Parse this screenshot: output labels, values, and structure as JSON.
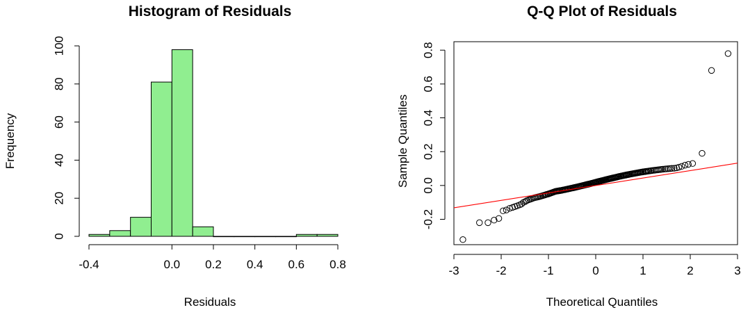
{
  "chart_data": [
    {
      "type": "bar",
      "title": "Histogram of Residuals",
      "xlabel": "Residuals",
      "ylabel": "Frequency",
      "xlim": [
        -0.4,
        0.8
      ],
      "ylim": [
        0,
        100
      ],
      "xticks": [
        -0.4,
        0.0,
        0.2,
        0.4,
        0.6,
        0.8
      ],
      "xtick_labels": [
        "-0.4",
        "0.0",
        "0.2",
        "0.4",
        "0.6",
        "0.8"
      ],
      "yticks": [
        0,
        20,
        40,
        60,
        80,
        100
      ],
      "ytick_labels": [
        "0",
        "20",
        "40",
        "60",
        "80",
        "100"
      ],
      "bin_width": 0.1,
      "bins": [
        {
          "from": -0.4,
          "to": -0.3,
          "count": 1
        },
        {
          "from": -0.3,
          "to": -0.2,
          "count": 3
        },
        {
          "from": -0.2,
          "to": -0.1,
          "count": 10
        },
        {
          "from": -0.1,
          "to": 0.0,
          "count": 81
        },
        {
          "from": 0.0,
          "to": 0.1,
          "count": 98
        },
        {
          "from": 0.1,
          "to": 0.2,
          "count": 5
        },
        {
          "from": 0.2,
          "to": 0.3,
          "count": 0
        },
        {
          "from": 0.3,
          "to": 0.4,
          "count": 0
        },
        {
          "from": 0.4,
          "to": 0.5,
          "count": 0
        },
        {
          "from": 0.5,
          "to": 0.6,
          "count": 0
        },
        {
          "from": 0.6,
          "to": 0.7,
          "count": 1
        },
        {
          "from": 0.7,
          "to": 0.8,
          "count": 1
        }
      ],
      "bar_color": "#90ee90",
      "grid": false
    },
    {
      "type": "scatter",
      "title": "Q-Q Plot of Residuals",
      "xlabel": "Theoretical Quantiles",
      "ylabel": "Sample Quantiles",
      "xlim": [
        -3.0,
        3.0
      ],
      "ylim": [
        -0.35,
        0.85
      ],
      "xticks": [
        -3,
        -2,
        -1,
        0,
        1,
        2,
        3
      ],
      "xtick_labels": [
        "-3",
        "-2",
        "-1",
        "0",
        "1",
        "2",
        "3"
      ],
      "yticks": [
        -0.2,
        0.0,
        0.2,
        0.4,
        0.6,
        0.8
      ],
      "ytick_labels": [
        "-0.2",
        "0.0",
        "0.2",
        "0.4",
        "0.6",
        "0.8"
      ],
      "n_points": 200,
      "points": [
        [
          -2.81,
          -0.32
        ],
        [
          -2.46,
          -0.22
        ],
        [
          -2.28,
          -0.22
        ],
        [
          -2.15,
          -0.205
        ],
        [
          -2.05,
          -0.195
        ],
        [
          -1.96,
          -0.15
        ],
        [
          -1.89,
          -0.145
        ],
        [
          -1.82,
          -0.135
        ],
        [
          -1.76,
          -0.13
        ],
        [
          -1.71,
          -0.125
        ],
        [
          -1.66,
          -0.12
        ],
        [
          -1.61,
          -0.115
        ],
        [
          -1.57,
          -0.11
        ],
        [
          -1.53,
          -0.1
        ],
        [
          -1.49,
          -0.095
        ],
        [
          -1.46,
          -0.09
        ],
        [
          -1.42,
          -0.085
        ],
        [
          -1.39,
          -0.082
        ],
        [
          -1.36,
          -0.079
        ],
        [
          -1.33,
          -0.076
        ],
        [
          -1.3,
          -0.073
        ],
        [
          -1.27,
          -0.071
        ],
        [
          -1.24,
          -0.069
        ],
        [
          -1.21,
          -0.067
        ],
        [
          -1.18,
          -0.065
        ],
        [
          -1.16,
          -0.063
        ],
        [
          -1.13,
          -0.061
        ],
        [
          -1.11,
          -0.059
        ],
        [
          -1.08,
          -0.057
        ],
        [
          -1.06,
          -0.055
        ],
        [
          -1.04,
          -0.053
        ],
        [
          -1.01,
          -0.051
        ],
        [
          -0.99,
          -0.049
        ],
        [
          -0.97,
          -0.047
        ],
        [
          -0.95,
          -0.045
        ],
        [
          -0.93,
          -0.043
        ],
        [
          -0.91,
          -0.041
        ],
        [
          -0.89,
          -0.039
        ],
        [
          -0.87,
          -0.037
        ],
        [
          -0.85,
          -0.035
        ],
        [
          -0.83,
          -0.034
        ],
        [
          -0.81,
          -0.033
        ],
        [
          -0.79,
          -0.032
        ],
        [
          -0.77,
          -0.031
        ],
        [
          -0.75,
          -0.03
        ],
        [
          -0.73,
          -0.029
        ],
        [
          -0.71,
          -0.028
        ],
        [
          -0.7,
          -0.027
        ],
        [
          -0.68,
          -0.026
        ],
        [
          -0.66,
          -0.025
        ],
        [
          -0.64,
          -0.024
        ],
        [
          -0.63,
          -0.023
        ],
        [
          -0.61,
          -0.022
        ],
        [
          -0.59,
          -0.021
        ],
        [
          -0.58,
          -0.02
        ],
        [
          -0.56,
          -0.019
        ],
        [
          -0.54,
          -0.018
        ],
        [
          -0.53,
          -0.017
        ],
        [
          -0.51,
          -0.016
        ],
        [
          -0.49,
          -0.015
        ],
        [
          -0.48,
          -0.014
        ],
        [
          -0.46,
          -0.013
        ],
        [
          -0.45,
          -0.012
        ],
        [
          -0.43,
          -0.011
        ],
        [
          -0.42,
          -0.01
        ],
        [
          -0.4,
          -0.009
        ],
        [
          -0.39,
          -0.008
        ],
        [
          -0.37,
          -0.007
        ],
        [
          -0.36,
          -0.006
        ],
        [
          -0.34,
          -0.005
        ],
        [
          -0.33,
          -0.004
        ],
        [
          -0.31,
          -0.003
        ],
        [
          -0.3,
          -0.002
        ],
        [
          -0.28,
          -0.001
        ],
        [
          -0.27,
          0.0
        ],
        [
          -0.25,
          0.001
        ],
        [
          -0.24,
          0.002
        ],
        [
          -0.22,
          0.003
        ],
        [
          -0.21,
          0.004
        ],
        [
          -0.2,
          0.005
        ],
        [
          -0.18,
          0.006
        ],
        [
          -0.17,
          0.007
        ],
        [
          -0.15,
          0.008
        ],
        [
          -0.14,
          0.009
        ],
        [
          -0.12,
          0.01
        ],
        [
          -0.11,
          0.011
        ],
        [
          -0.1,
          0.012
        ],
        [
          -0.08,
          0.013
        ],
        [
          -0.07,
          0.014
        ],
        [
          -0.05,
          0.015
        ],
        [
          -0.04,
          0.016
        ],
        [
          -0.03,
          0.017
        ],
        [
          -0.01,
          0.018
        ],
        [
          0.0,
          0.019
        ],
        [
          0.01,
          0.02
        ],
        [
          0.03,
          0.021
        ],
        [
          0.04,
          0.022
        ],
        [
          0.05,
          0.023
        ],
        [
          0.07,
          0.024
        ],
        [
          0.08,
          0.025
        ],
        [
          0.1,
          0.026
        ],
        [
          0.11,
          0.027
        ],
        [
          0.12,
          0.028
        ],
        [
          0.14,
          0.029
        ],
        [
          0.15,
          0.03
        ],
        [
          0.17,
          0.031
        ],
        [
          0.18,
          0.032
        ],
        [
          0.2,
          0.033
        ],
        [
          0.21,
          0.034
        ],
        [
          0.22,
          0.035
        ],
        [
          0.24,
          0.036
        ],
        [
          0.25,
          0.037
        ],
        [
          0.27,
          0.038
        ],
        [
          0.28,
          0.039
        ],
        [
          0.3,
          0.04
        ],
        [
          0.31,
          0.041
        ],
        [
          0.33,
          0.042
        ],
        [
          0.34,
          0.043
        ],
        [
          0.36,
          0.044
        ],
        [
          0.37,
          0.045
        ],
        [
          0.39,
          0.046
        ],
        [
          0.4,
          0.047
        ],
        [
          0.42,
          0.048
        ],
        [
          0.43,
          0.049
        ],
        [
          0.45,
          0.05
        ],
        [
          0.46,
          0.051
        ],
        [
          0.48,
          0.052
        ],
        [
          0.49,
          0.053
        ],
        [
          0.51,
          0.054
        ],
        [
          0.53,
          0.055
        ],
        [
          0.54,
          0.056
        ],
        [
          0.56,
          0.057
        ],
        [
          0.58,
          0.058
        ],
        [
          0.59,
          0.059
        ],
        [
          0.61,
          0.06
        ],
        [
          0.63,
          0.061
        ],
        [
          0.64,
          0.062
        ],
        [
          0.66,
          0.063
        ],
        [
          0.68,
          0.064
        ],
        [
          0.7,
          0.065
        ],
        [
          0.71,
          0.066
        ],
        [
          0.73,
          0.067
        ],
        [
          0.75,
          0.068
        ],
        [
          0.77,
          0.069
        ],
        [
          0.79,
          0.07
        ],
        [
          0.81,
          0.071
        ],
        [
          0.83,
          0.072
        ],
        [
          0.85,
          0.073
        ],
        [
          0.87,
          0.074
        ],
        [
          0.89,
          0.075
        ],
        [
          0.91,
          0.076
        ],
        [
          0.93,
          0.077
        ],
        [
          0.95,
          0.078
        ],
        [
          0.97,
          0.079
        ],
        [
          0.99,
          0.08
        ],
        [
          1.01,
          0.081
        ],
        [
          1.04,
          0.082
        ],
        [
          1.06,
          0.083
        ],
        [
          1.08,
          0.084
        ],
        [
          1.11,
          0.085
        ],
        [
          1.13,
          0.086
        ],
        [
          1.16,
          0.087
        ],
        [
          1.18,
          0.088
        ],
        [
          1.21,
          0.089
        ],
        [
          1.24,
          0.09
        ],
        [
          1.27,
          0.091
        ],
        [
          1.3,
          0.092
        ],
        [
          1.33,
          0.093
        ],
        [
          1.36,
          0.094
        ],
        [
          1.39,
          0.095
        ],
        [
          1.42,
          0.096
        ],
        [
          1.46,
          0.097
        ],
        [
          1.49,
          0.098
        ],
        [
          1.53,
          0.099
        ],
        [
          1.57,
          0.1
        ],
        [
          1.61,
          0.101
        ],
        [
          1.66,
          0.102
        ],
        [
          1.71,
          0.104
        ],
        [
          1.76,
          0.108
        ],
        [
          1.82,
          0.113
        ],
        [
          1.89,
          0.12
        ],
        [
          1.96,
          0.125
        ],
        [
          2.05,
          0.13
        ],
        [
          2.25,
          0.19
        ],
        [
          2.45,
          0.68
        ],
        [
          2.8,
          0.78
        ]
      ],
      "reference_line": {
        "intercept": 0.0,
        "slope": 0.044,
        "color": "#ff0000"
      },
      "grid": false
    }
  ]
}
